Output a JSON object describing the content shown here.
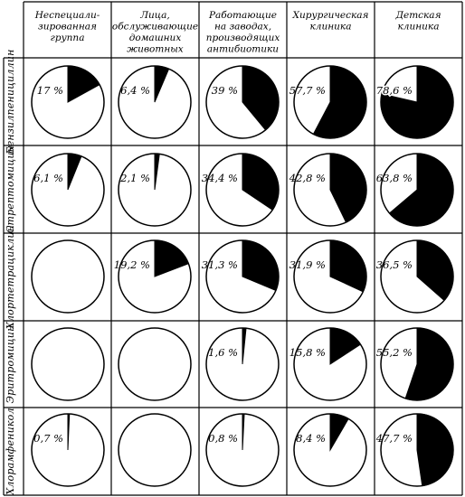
{
  "chart_data": {
    "type": "pie",
    "columns": [
      [
        "Неспециали-",
        "зированная",
        "группа"
      ],
      [
        "Лица,",
        "обслуживающие",
        "домашних",
        "животных"
      ],
      [
        "Работающие",
        "на заводах,",
        "производящих",
        "антибиотики"
      ],
      [
        "Хирургическая",
        "клиника"
      ],
      [
        "Детская",
        "клиника"
      ]
    ],
    "rows": [
      "Бензилпенициллин",
      "Стрептомицин",
      "Хлортетрациклин",
      "Эритромицин",
      "Хлорамфеникол"
    ],
    "values": [
      [
        17,
        6.4,
        39,
        57.7,
        78.6
      ],
      [
        6.1,
        2.1,
        34.4,
        42.8,
        63.8
      ],
      [
        null,
        19.2,
        31.3,
        31.9,
        36.5
      ],
      [
        null,
        null,
        1.6,
        15.8,
        55.2
      ],
      [
        0.7,
        null,
        0.8,
        8.4,
        47.7
      ]
    ],
    "labels": [
      [
        "17 %",
        "6,4 %",
        "39 %",
        "57,7 %",
        "78,6 %"
      ],
      [
        "6,1 %",
        "2,1 %",
        "34,4 %",
        "42,8 %",
        "63,8 %"
      ],
      [
        "",
        "19,2 %",
        "31,3 %",
        "31,9 %",
        "36,5 %"
      ],
      [
        "",
        "",
        "1,6 %",
        "15,8 %",
        "55,2 %"
      ],
      [
        "0,7 %",
        "",
        "0,8 %",
        "8,4 %",
        "47,7 %"
      ]
    ],
    "slice_color": "#000000",
    "rest_color": "#ffffff"
  }
}
